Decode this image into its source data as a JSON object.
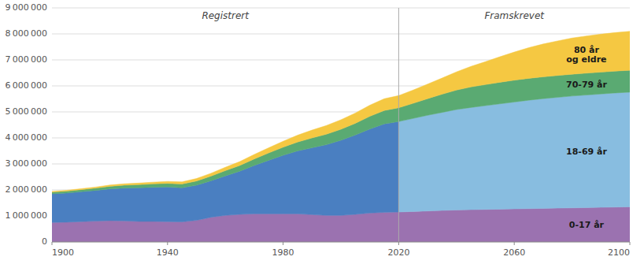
{
  "chart_data": [
    {
      "type": "area",
      "stacked": true,
      "title": "Registrert",
      "xlim": [
        1900,
        2100
      ],
      "xticks": [
        1900,
        1940,
        1980,
        2020,
        2060,
        2100
      ],
      "ylim": [
        0,
        9000000
      ],
      "yticks": [
        0,
        {
          "value": 1000000,
          "label": "1 000 000"
        },
        {
          "value": 2000000,
          "label": "2 000 000"
        },
        {
          "value": 3000000,
          "label": "3 000 000"
        },
        {
          "value": 4000000,
          "label": "4 000 000"
        },
        {
          "value": 5000000,
          "label": "5 000 000"
        },
        {
          "value": 6000000,
          "label": "6 000 000"
        },
        {
          "value": 7000000,
          "label": "7 000 000"
        },
        {
          "value": 8000000,
          "label": "8 000 000"
        },
        {
          "value": 9000000,
          "label": "9 000 000"
        }
      ],
      "grid": true,
      "x": [
        1900,
        1905,
        1910,
        1915,
        1920,
        1925,
        1930,
        1935,
        1940,
        1945,
        1950,
        1955,
        1960,
        1965,
        1970,
        1975,
        1980,
        1985,
        1990,
        1995,
        2000,
        2005,
        2010,
        2015,
        2020
      ],
      "series": [
        {
          "color": "#9b72b0",
          "values": [
            750000,
            760000,
            780000,
            800000,
            820000,
            810000,
            790000,
            790000,
            780000,
            770000,
            830000,
            950000,
            1020000,
            1060000,
            1080000,
            1080000,
            1080000,
            1080000,
            1050000,
            1020000,
            1020000,
            1060000,
            1110000,
            1140000,
            1150000
          ]
        },
        {
          "color": "#4a7fc1",
          "values": [
            1100000,
            1120000,
            1150000,
            1180000,
            1220000,
            1260000,
            1290000,
            1310000,
            1330000,
            1310000,
            1350000,
            1400000,
            1520000,
            1660000,
            1860000,
            2060000,
            2250000,
            2420000,
            2570000,
            2720000,
            2890000,
            3050000,
            3230000,
            3400000,
            3480000
          ]
        },
        {
          "color": "#5aaa72",
          "values": [
            65000,
            72000,
            80000,
            88000,
            100000,
            112000,
            122000,
            132000,
            142000,
            148000,
            162000,
            180000,
            202000,
            222000,
            252000,
            282000,
            312000,
            342000,
            380000,
            402000,
            422000,
            452000,
            490000,
            515000,
            530000
          ]
        },
        {
          "color": "#f5c842",
          "values": [
            28000,
            32000,
            37000,
            41000,
            47000,
            54000,
            60000,
            67000,
            75000,
            82000,
            96000,
            110000,
            130000,
            148000,
            172000,
            198000,
            228000,
            262000,
            300000,
            336000,
            366000,
            396000,
            428000,
            452000,
            468000
          ]
        }
      ]
    },
    {
      "type": "area",
      "stacked": true,
      "title": "Framskrevet",
      "x": [
        2020,
        2025,
        2030,
        2035,
        2040,
        2045,
        2050,
        2055,
        2060,
        2065,
        2070,
        2075,
        2080,
        2085,
        2090,
        2095,
        2100
      ],
      "series": [
        {
          "name": "0-17 år",
          "color": "#9b72b0",
          "values": [
            1150000,
            1170000,
            1190000,
            1210000,
            1230000,
            1240000,
            1250000,
            1260000,
            1270000,
            1280000,
            1290000,
            1300000,
            1310000,
            1320000,
            1330000,
            1340000,
            1350000
          ]
        },
        {
          "name": "18-69 år",
          "color": "#88bde0",
          "values": [
            3480000,
            3580000,
            3680000,
            3770000,
            3860000,
            3930000,
            3990000,
            4050000,
            4110000,
            4170000,
            4220000,
            4260000,
            4300000,
            4330000,
            4360000,
            4390000,
            4410000
          ]
        },
        {
          "name": "70-79 år",
          "color": "#5aaa72",
          "values": [
            530000,
            580000,
            640000,
            700000,
            750000,
            790000,
            810000,
            830000,
            840000,
            840000,
            840000,
            840000,
            840000,
            840000,
            840000,
            840000,
            840000
          ]
        },
        {
          "name": "80 år\nog eldre",
          "color": "#f5c842",
          "values": [
            468000,
            510000,
            560000,
            620000,
            700000,
            790000,
            880000,
            980000,
            1080000,
            1180000,
            1260000,
            1330000,
            1390000,
            1430000,
            1460000,
            1480000,
            1500000
          ]
        }
      ]
    }
  ]
}
